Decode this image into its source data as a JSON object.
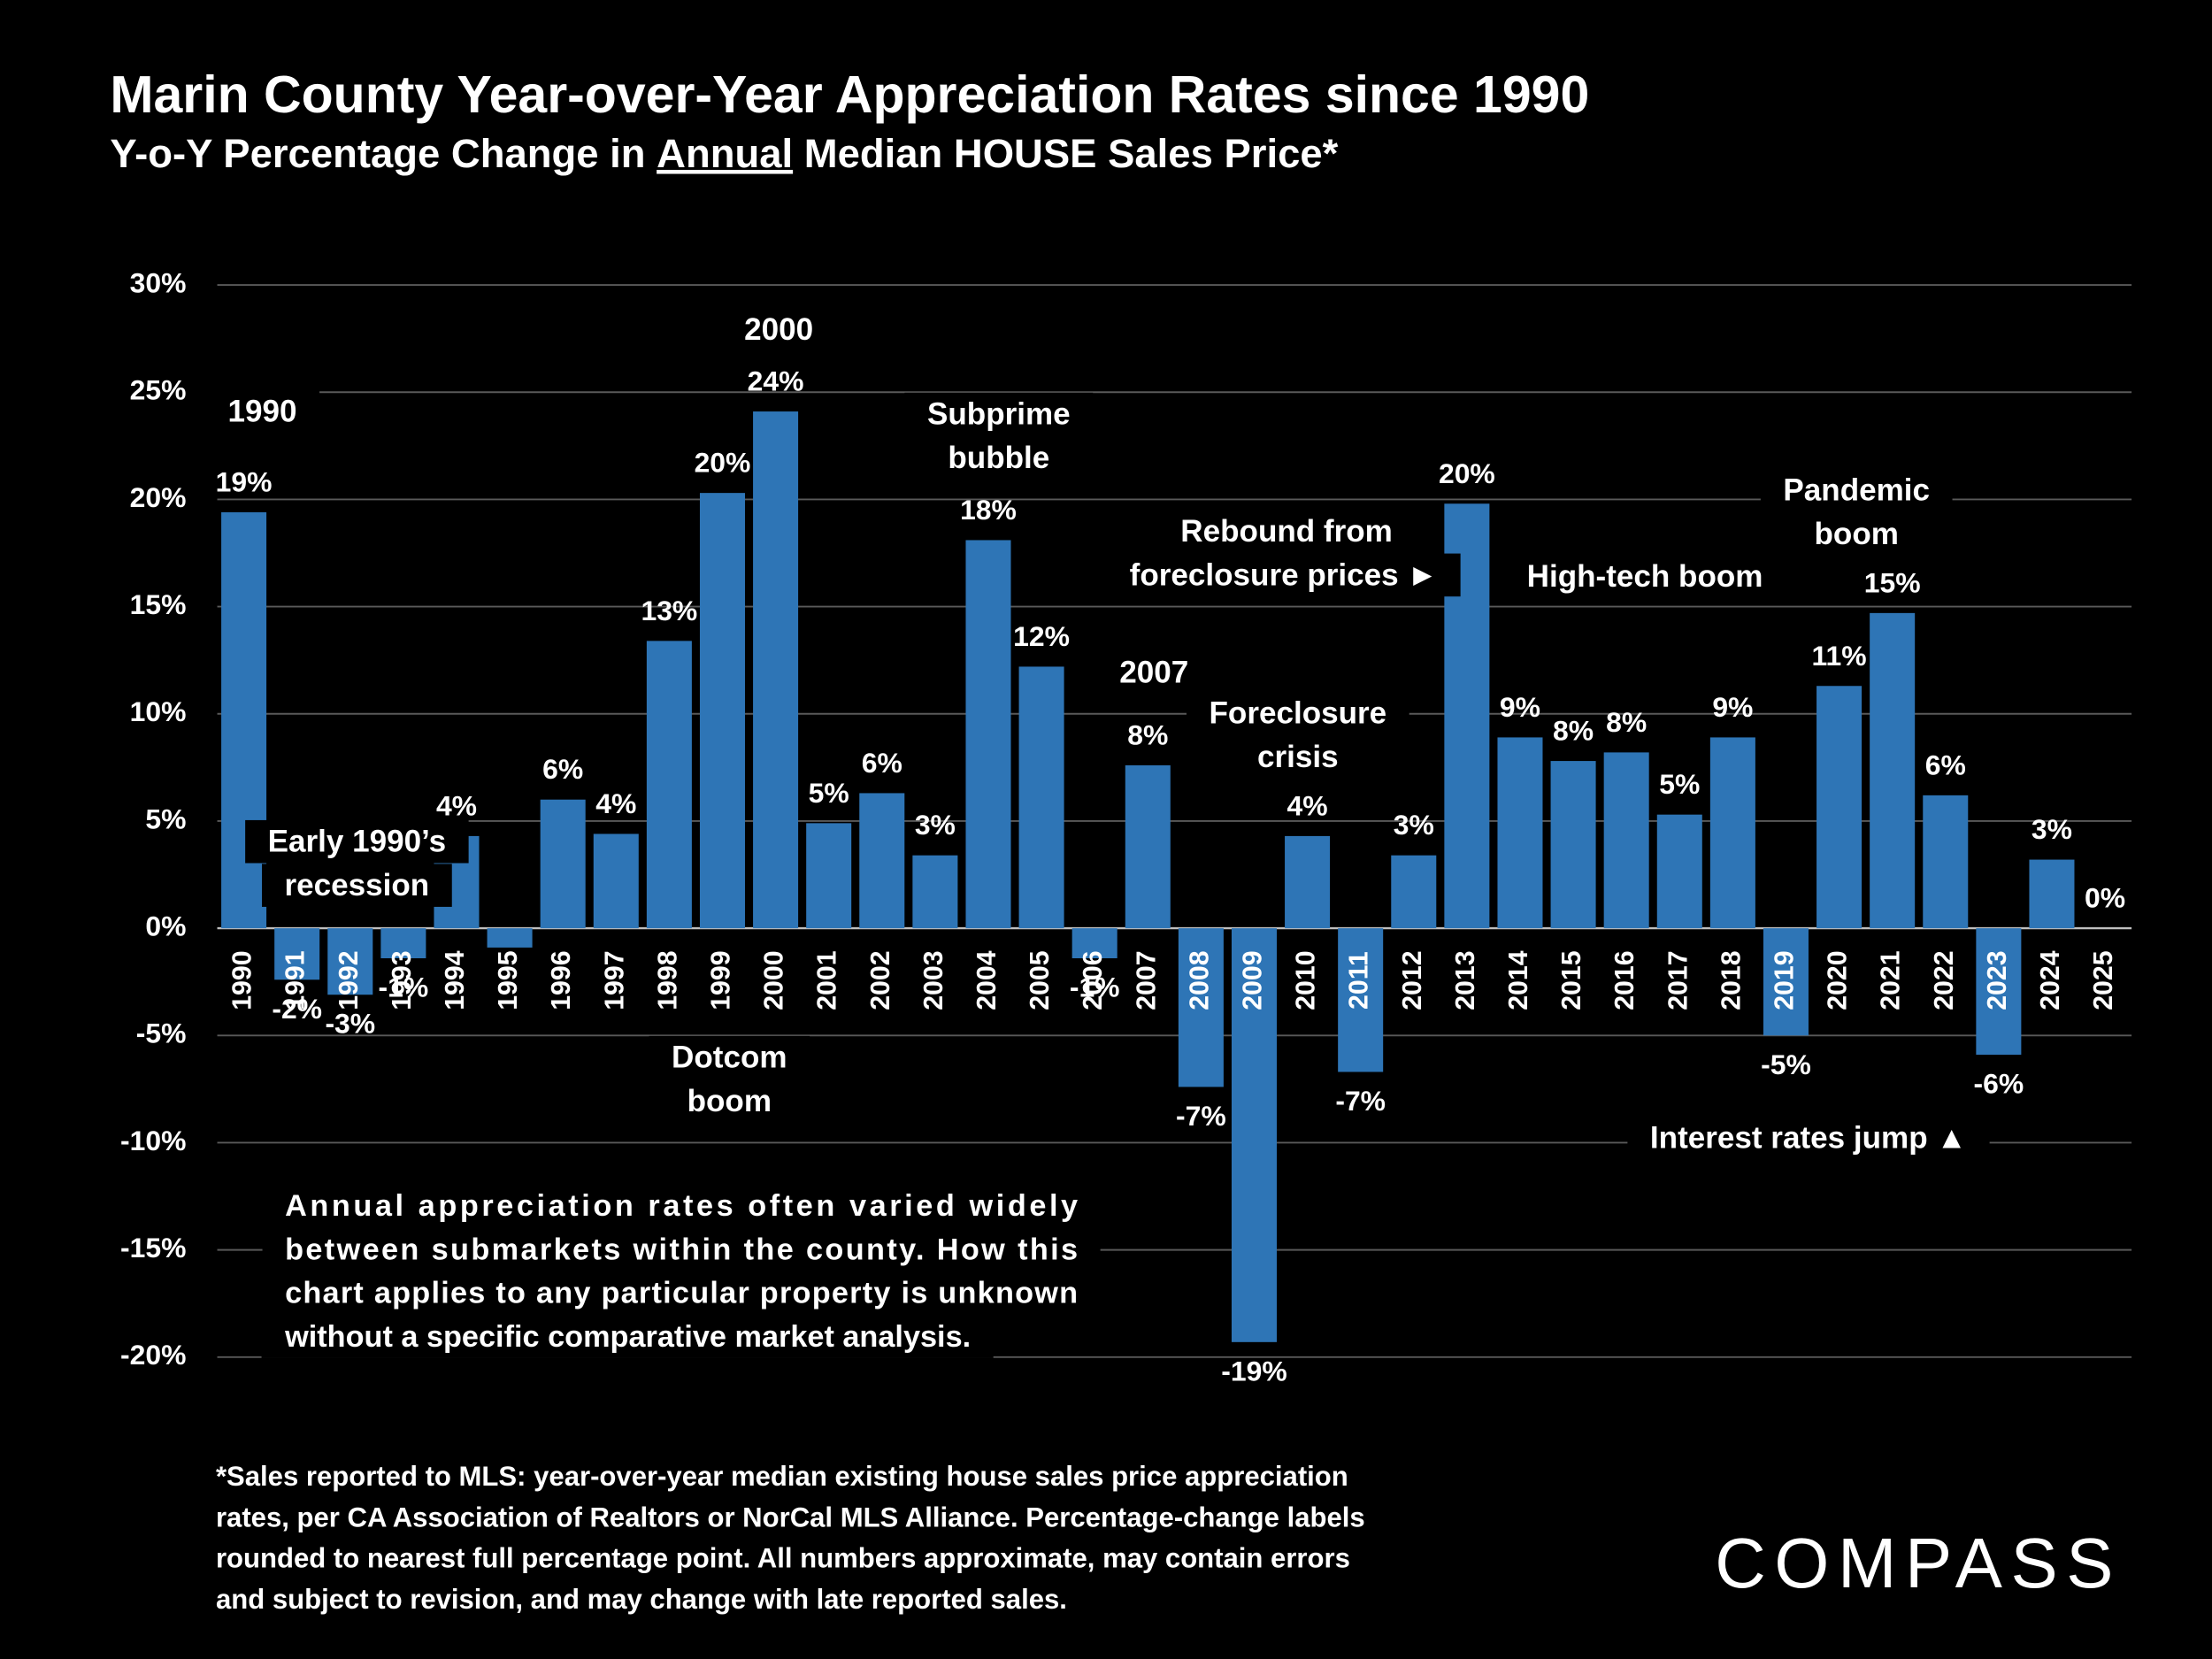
{
  "chart_data": {
    "type": "bar",
    "title": "Marin County Year-over-Year Appreciation Rates since 1990",
    "subtitle": [
      "Y-o-Y Percentage Change in ",
      "Annual",
      " Median HOUSE Sales Price*"
    ],
    "categories": [
      "1990",
      "1991",
      "1992",
      "1993",
      "1994",
      "1995",
      "1996",
      "1997",
      "1998",
      "1999",
      "2000",
      "2001",
      "2002",
      "2003",
      "2004",
      "2005",
      "2006",
      "2007",
      "2008",
      "2009",
      "2010",
      "2011",
      "2012",
      "2013",
      "2014",
      "2015",
      "2016",
      "2017",
      "2018",
      "2019",
      "2020",
      "2021",
      "2022",
      "2023",
      "2024",
      "2025"
    ],
    "values": [
      19.4,
      -2.4,
      -3.1,
      -1.4,
      4.3,
      -0.9,
      6.0,
      4.4,
      13.4,
      20.3,
      24.1,
      4.9,
      6.3,
      3.4,
      18.1,
      12.2,
      -1.4,
      7.6,
      -7.4,
      -19.3,
      4.3,
      -6.7,
      3.4,
      19.8,
      8.9,
      7.8,
      8.2,
      5.3,
      8.9,
      -5.0,
      11.3,
      14.7,
      6.2,
      -5.9,
      3.2,
      0
    ],
    "value_labels": [
      "19%",
      "-2%",
      "-3%",
      "-1%",
      "4%",
      null,
      "6%",
      "4%",
      "13%",
      "20%",
      "24%",
      "5%",
      "6%",
      "3%",
      "18%",
      "12%",
      "-1%",
      "8%",
      "-7%",
      "-19%",
      "4%",
      "-7%",
      "3%",
      "20%",
      "9%",
      "8%",
      "8%",
      "5%",
      "9%",
      "-5%",
      "11%",
      "15%",
      "6%",
      "-6%",
      "3%",
      "0%"
    ],
    "color": "#2e75b6",
    "ylim": [
      -20,
      30
    ],
    "yticks": [
      {
        "value": -20,
        "label": "-20%"
      },
      {
        "value": -15,
        "label": "-15%"
      },
      {
        "value": -10,
        "label": "-10%"
      },
      {
        "value": -5,
        "label": "-5%"
      },
      {
        "value": 0,
        "label": "0%"
      },
      {
        "value": 5,
        "label": "5%"
      },
      {
        "value": 10,
        "label": "10%"
      },
      {
        "value": 15,
        "label": "15%"
      },
      {
        "value": 20,
        "label": "20%"
      },
      {
        "value": 25,
        "label": "25%"
      },
      {
        "value": 30,
        "label": "30%"
      }
    ],
    "grid": true,
    "annotations": [
      [
        "1990"
      ],
      [
        "Early 1990’s",
        "recession"
      ],
      [
        "2000"
      ],
      [
        "Dotcom",
        "boom"
      ],
      [
        "Subprime",
        "bubble"
      ],
      [
        "2007"
      ],
      [
        "Foreclosure",
        "crisis"
      ],
      [
        "Rebound from",
        "foreclosure prices ►"
      ],
      [
        "High-tech boom"
      ],
      [
        "Pandemic",
        "boom"
      ],
      [
        "Interest rates jump ▲"
      ]
    ],
    "note": [
      "Annual appreciation rates often varied widely",
      "between submarkets within the county. How this",
      "chart applies to any particular property is unknown",
      "without a specific comparative market analysis."
    ],
    "footnote": [
      "*Sales reported to MLS: year-over-year median existing house sales price appreciation",
      "rates, per CA Association of Realtors or NorCal MLS Alliance. Percentage-change labels",
      "rounded to nearest full percentage point. All numbers approximate, may contain errors",
      "and subject to revision, and may change with late reported sales."
    ],
    "brand": "COMPASS"
  }
}
